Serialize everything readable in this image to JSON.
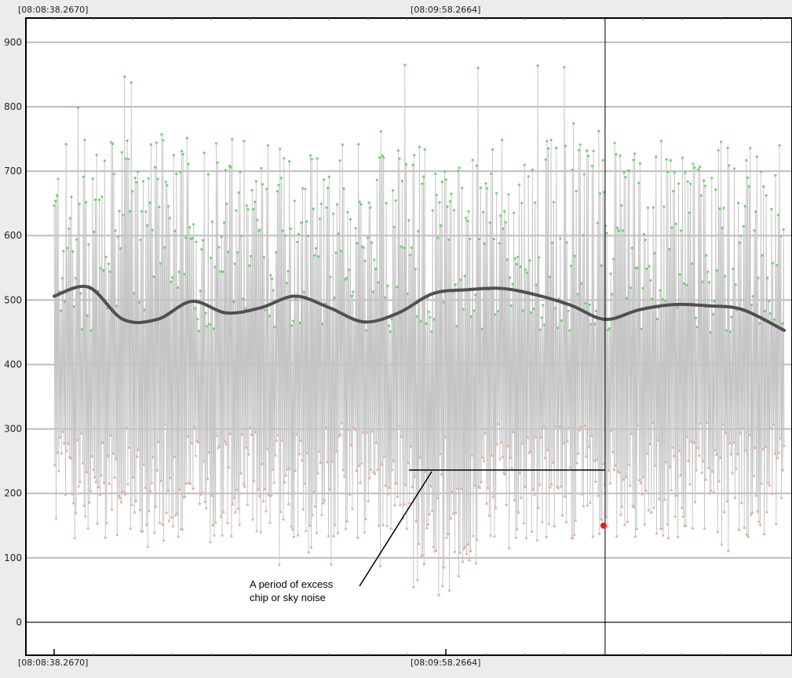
{
  "chart_data": {
    "type": "scatter",
    "title": "",
    "xlabel": "",
    "ylabel": "",
    "timestamps": {
      "top_left": "[08:08:38.2670]",
      "top_cursor": "[08:09:58.2664]",
      "bottom_left": "[08:08:38.2670]",
      "bottom_cursor": "[08:09:58.2664]"
    },
    "yticks": [
      "0",
      "100",
      "200",
      "300",
      "400",
      "500",
      "600",
      "700",
      "800",
      "900"
    ],
    "ytick_values": [
      0,
      100,
      200,
      300,
      400,
      500,
      600,
      700,
      800,
      900
    ],
    "ylim": [
      -50,
      935
    ],
    "x_range_seconds": [
      0,
      106
    ],
    "cursor_x_seconds": 80,
    "grid": true,
    "series": [
      {
        "role": "raw-trace",
        "color": "#c4c4c4",
        "n_samples": 1100,
        "high_range": [
          300,
          900
        ],
        "low_range": [
          -10,
          360
        ]
      },
      {
        "role": "high-samples",
        "color": "#6fd36f"
      },
      {
        "role": "low-samples",
        "color": "#e2b6a4"
      },
      {
        "role": "smoothed-trend",
        "color": "#505050",
        "x": [
          0,
          5,
          10,
          15,
          20,
          25,
          30,
          35,
          40,
          45,
          50,
          55,
          60,
          65,
          70,
          75,
          80,
          85,
          90,
          95,
          100,
          106
        ],
        "y": [
          506,
          520,
          470,
          470,
          498,
          480,
          488,
          506,
          488,
          466,
          480,
          510,
          516,
          518,
          508,
          492,
          470,
          485,
          493,
          491,
          485,
          453
        ]
      },
      {
        "role": "cursor-marker",
        "color": "#e02020",
        "x": [
          80
        ],
        "y": [
          150
        ]
      }
    ],
    "annotations": [
      {
        "text_lines": [
          "A period of excess",
          "chip or sky noise"
        ]
      }
    ]
  },
  "colors": {
    "background": "#ffffff",
    "outer": "#ececec",
    "grid": "#bdbdbd",
    "zero_line": "#707070",
    "cursor_line": "#000000"
  }
}
